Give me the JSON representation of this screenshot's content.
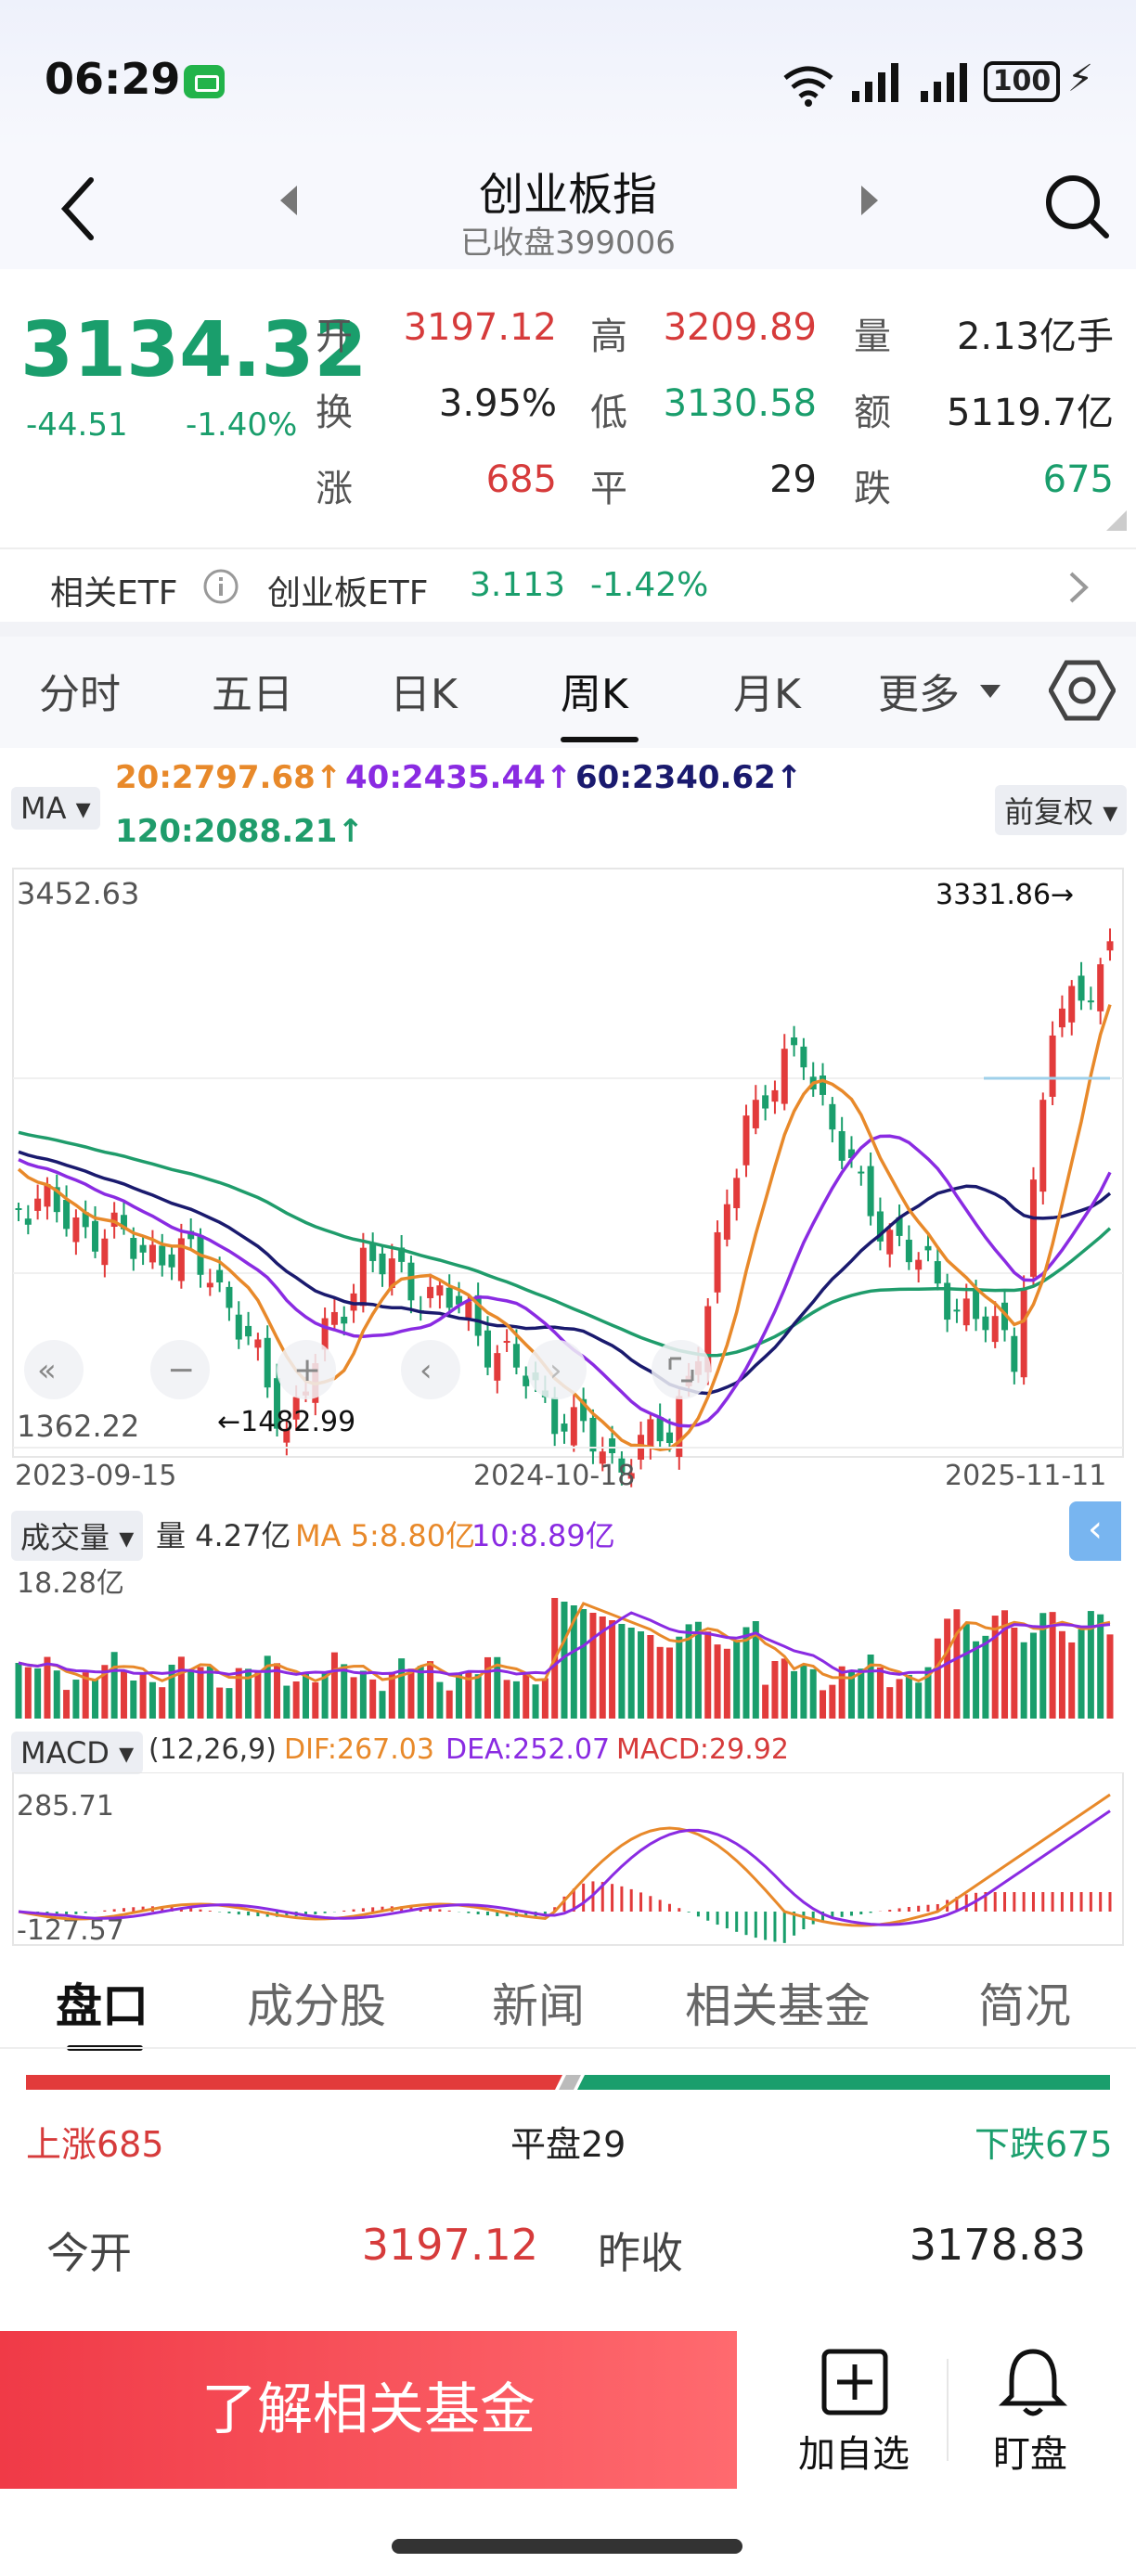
{
  "status_bar": {
    "time": "06:29",
    "battery": "100",
    "bolt": "⚡"
  },
  "header": {
    "title": "创业板指",
    "subtitle": "已收盘399006"
  },
  "quote": {
    "price": "3134.32",
    "change": "-44.51",
    "change_pct": "-1.40%",
    "stats": {
      "open_label": "开",
      "open": "3197.12",
      "high_label": "高",
      "high": "3209.89",
      "vol_label": "量",
      "vol": "2.13亿手",
      "turnover_label": "换",
      "turnover": "3.95%",
      "low_label": "低",
      "low": "3130.58",
      "amount_label": "额",
      "amount": "5119.7亿",
      "up_label": "涨",
      "up": "685",
      "flat_label": "平",
      "flat": "29",
      "down_label": "跌",
      "down": "675"
    }
  },
  "etf": {
    "label": "相关ETF",
    "name": "创业板ETF",
    "price": "3.113",
    "pct": "-1.42%"
  },
  "period_tabs": [
    "分时",
    "五日",
    "日K",
    "周K",
    "月K",
    "更多"
  ],
  "chart": {
    "ma_chip": "MA",
    "ma20": "20:2797.68↑",
    "ma40": "40:2435.44↑",
    "ma60": "60:2340.62↑",
    "ma120": "120:2088.21↑",
    "adjust_chip": "前复权",
    "y_top": "3452.63",
    "y_bottom": "1362.22",
    "max_mark": "3331.86→",
    "min_mark": "←1482.99",
    "dates": [
      "2023-09-15",
      "2024-10-18",
      "2025-11-11"
    ],
    "colors": {
      "ma20": "#e8892a",
      "ma40": "#8a2be2",
      "ma60": "#1a1a6e",
      "ma120": "#1f9c6b",
      "up": "#e23b3b",
      "down": "#1a9e6c"
    }
  },
  "volume": {
    "chip": "成交量",
    "vol": "量 4.27亿",
    "ma5": "MA 5:8.80亿",
    "ma10": "10:8.89亿",
    "top": "18.28亿"
  },
  "macd": {
    "chip": "MACD",
    "params": "(12,26,9)",
    "dif": "DIF:267.03",
    "dea": "DEA:252.07",
    "macd": "MACD:29.92",
    "top": "285.71",
    "bottom": "-127.57"
  },
  "bottom_tabs": [
    "盘口",
    "成分股",
    "新闻",
    "相关基金",
    "简况"
  ],
  "breadth": {
    "up": "上涨685",
    "flat": "平盘29",
    "down": "下跌675"
  },
  "detail": {
    "open_label": "今开",
    "open": "3197.12",
    "prev_label": "昨收",
    "prev": "3178.83"
  },
  "bottom_bar": {
    "cta": "了解相关基金",
    "add_label": "加自选",
    "watch_label": "盯盘"
  }
}
